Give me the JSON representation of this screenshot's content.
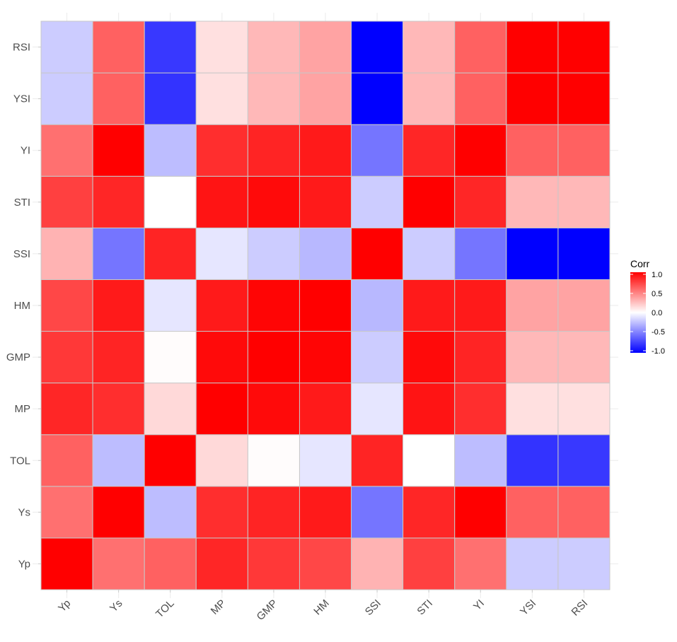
{
  "chart_data": {
    "type": "heatmap",
    "title": "",
    "xlabel": "",
    "ylabel": "",
    "x_categories": [
      "Yp",
      "Ys",
      "TOL",
      "MP",
      "GMP",
      "HM",
      "SSI",
      "STI",
      "YI",
      "YSI",
      "RSI"
    ],
    "y_categories": [
      "Yp",
      "Ys",
      "TOL",
      "MP",
      "GMP",
      "HM",
      "SSI",
      "STI",
      "YI",
      "YSI",
      "RSI"
    ],
    "values": [
      [
        1.0,
        0.56,
        0.62,
        0.85,
        0.78,
        0.72,
        0.3,
        0.75,
        0.56,
        -0.2,
        -0.2
      ],
      [
        0.56,
        1.0,
        -0.26,
        0.82,
        0.86,
        0.9,
        -0.54,
        0.85,
        1.0,
        0.62,
        0.62
      ],
      [
        0.62,
        -0.26,
        1.0,
        0.15,
        0.01,
        -0.1,
        0.86,
        0.0,
        -0.26,
        -0.8,
        -0.78
      ],
      [
        0.85,
        0.82,
        0.15,
        1.0,
        0.96,
        0.9,
        -0.1,
        0.92,
        0.82,
        0.12,
        0.12
      ],
      [
        0.78,
        0.86,
        0.01,
        0.96,
        1.0,
        0.98,
        -0.2,
        0.96,
        0.86,
        0.28,
        0.28
      ],
      [
        0.72,
        0.9,
        -0.1,
        0.9,
        0.98,
        1.0,
        -0.28,
        0.9,
        0.9,
        0.36,
        0.36
      ],
      [
        0.3,
        -0.54,
        0.86,
        -0.1,
        -0.2,
        -0.28,
        1.0,
        -0.2,
        -0.54,
        -1.0,
        -1.0
      ],
      [
        0.75,
        0.85,
        0.0,
        0.92,
        0.96,
        0.9,
        -0.2,
        1.0,
        0.85,
        0.28,
        0.28
      ],
      [
        0.56,
        1.0,
        -0.26,
        0.82,
        0.86,
        0.9,
        -0.54,
        0.85,
        1.0,
        0.62,
        0.62
      ],
      [
        -0.2,
        0.62,
        -0.8,
        0.12,
        0.28,
        0.36,
        -1.0,
        0.28,
        0.62,
        1.0,
        1.0
      ],
      [
        -0.2,
        0.62,
        -0.78,
        0.12,
        0.28,
        0.36,
        -1.0,
        0.28,
        0.62,
        1.0,
        1.0
      ]
    ],
    "color_scale": {
      "low": "#0000ff",
      "mid": "#ffffff",
      "high": "#ff0000",
      "limits": [
        -1,
        1
      ]
    },
    "legend": {
      "title": "Corr",
      "position": "right",
      "breaks": [
        1.0,
        0.5,
        0.0,
        -0.5,
        -1.0
      ],
      "labels": [
        "1.0",
        "0.5",
        "0.0",
        "-0.5",
        "-1.0"
      ]
    },
    "grid": true,
    "x_tick_rotation": -45
  }
}
